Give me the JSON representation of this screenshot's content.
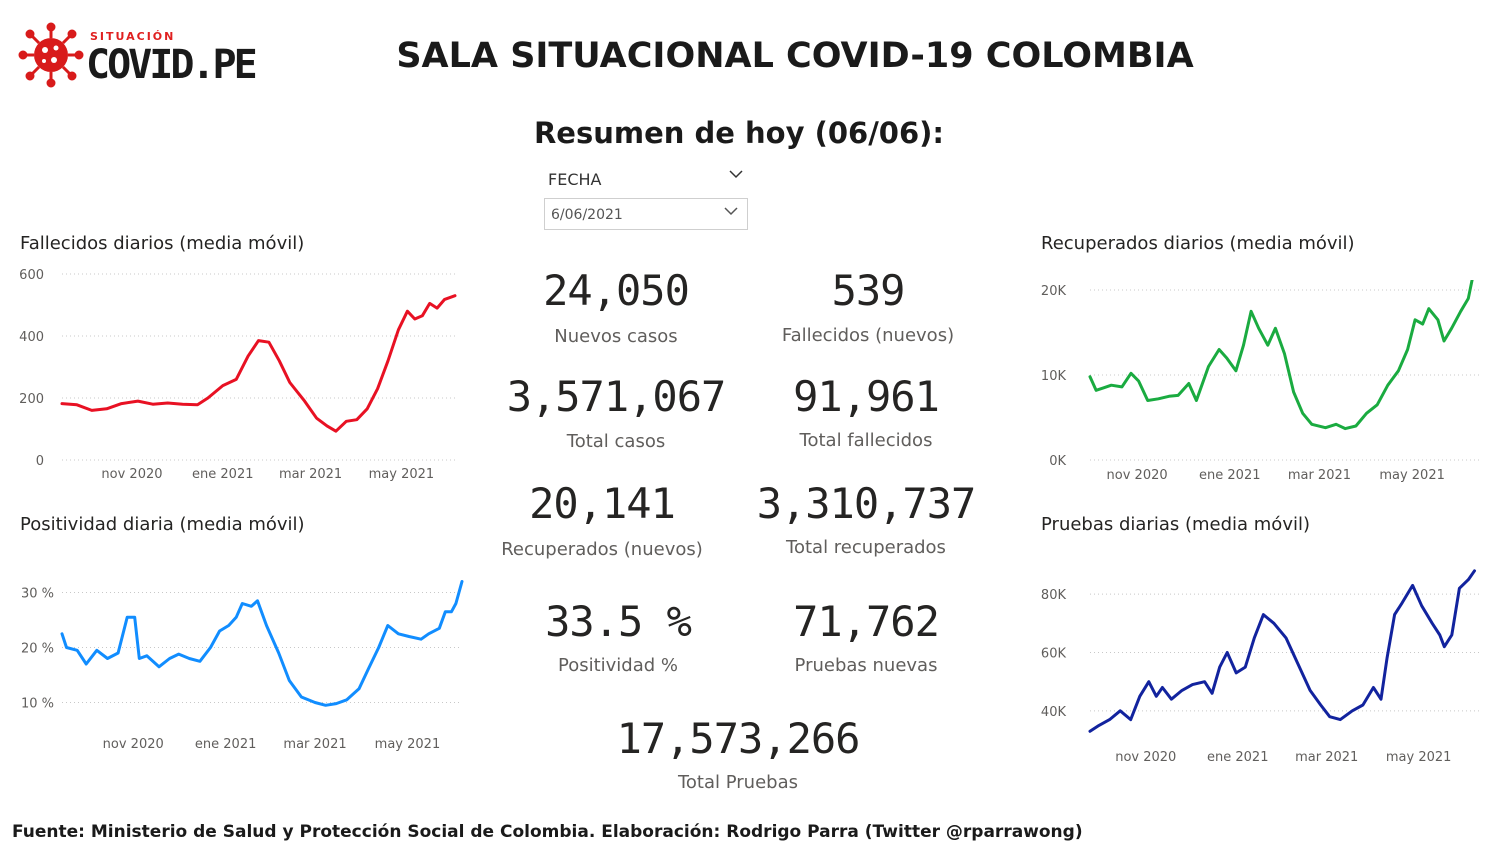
{
  "header": {
    "logo_small": "SITUACIÓN",
    "logo_big": "COVID.PE",
    "title": "SALA SITUACIONAL COVID-19 COLOMBIA",
    "subtitle": "Resumen de hoy (06/06):"
  },
  "slicer": {
    "label": "FECHA",
    "value": "6/06/2021"
  },
  "kpis": {
    "nuevos_casos": {
      "value": "24,050",
      "label": "Nuevos casos"
    },
    "fallecidos_nuevos": {
      "value": "539",
      "label": "Fallecidos (nuevos)"
    },
    "total_casos": {
      "value": "3,571,067",
      "label": "Total casos"
    },
    "total_fallecidos": {
      "value": "91,961",
      "label": "Total fallecidos"
    },
    "recuperados_nuevos": {
      "value": "20,141",
      "label": "Recuperados (nuevos)"
    },
    "total_recuperados": {
      "value": "3,310,737",
      "label": "Total recuperados"
    },
    "positividad": {
      "value": "33.5 %",
      "label": "Positividad %"
    },
    "pruebas_nuevas": {
      "value": "71,762",
      "label": "Pruebas nuevas"
    },
    "total_pruebas": {
      "value": "17,573,266",
      "label": "Total Pruebas"
    }
  },
  "footer": "Fuente: Ministerio de Salud y Protección Social de Colombia. Elaboración: Rodrigo Parra (Twitter @rparrawong)",
  "chart_data": [
    {
      "id": "fallecidos",
      "type": "line",
      "title": "Fallecidos diarios (media móvil)",
      "color": "#e81123",
      "xlim": [
        "2020-09-15",
        "2021-06-06"
      ],
      "x_ticks": [
        "nov 2020",
        "ene 2021",
        "mar 2021",
        "may 2021"
      ],
      "ylim": [
        0,
        600
      ],
      "y_ticks": [
        0,
        200,
        400,
        600
      ],
      "y_tick_labels": [
        "0",
        "200",
        "400",
        "600"
      ],
      "grid": true,
      "points": [
        [
          "2020-09-15",
          182
        ],
        [
          "2020-09-25",
          178
        ],
        [
          "2020-10-05",
          160
        ],
        [
          "2020-10-15",
          165
        ],
        [
          "2020-10-25",
          182
        ],
        [
          "2020-11-05",
          190
        ],
        [
          "2020-11-15",
          180
        ],
        [
          "2020-11-25",
          184
        ],
        [
          "2020-12-05",
          180
        ],
        [
          "2020-12-15",
          178
        ],
        [
          "2020-12-22",
          200
        ],
        [
          "2021-01-01",
          240
        ],
        [
          "2021-01-10",
          260
        ],
        [
          "2021-01-18",
          335
        ],
        [
          "2021-01-25",
          385
        ],
        [
          "2021-02-01",
          380
        ],
        [
          "2021-02-08",
          320
        ],
        [
          "2021-02-15",
          250
        ],
        [
          "2021-02-25",
          190
        ],
        [
          "2021-03-05",
          135
        ],
        [
          "2021-03-12",
          110
        ],
        [
          "2021-03-18",
          93
        ],
        [
          "2021-03-25",
          125
        ],
        [
          "2021-04-01",
          130
        ],
        [
          "2021-04-08",
          165
        ],
        [
          "2021-04-15",
          230
        ],
        [
          "2021-04-22",
          320
        ],
        [
          "2021-04-29",
          420
        ],
        [
          "2021-05-05",
          480
        ],
        [
          "2021-05-10",
          455
        ],
        [
          "2021-05-15",
          465
        ],
        [
          "2021-05-20",
          505
        ],
        [
          "2021-05-25",
          490
        ],
        [
          "2021-05-30",
          518
        ],
        [
          "2021-06-06",
          530
        ]
      ]
    },
    {
      "id": "positividad",
      "type": "line",
      "title": "Positividad diaria (media móvil)",
      "color": "#118dff",
      "xlim": [
        "2020-09-15",
        "2021-06-06"
      ],
      "x_ticks": [
        "nov 2020",
        "ene 2021",
        "mar 2021",
        "may 2021"
      ],
      "ylim": [
        5,
        35
      ],
      "y_ticks": [
        10,
        20,
        30
      ],
      "y_tick_labels": [
        "10 %",
        "20 %",
        "30 %"
      ],
      "grid": true,
      "points": [
        [
          "2020-09-15",
          22.5
        ],
        [
          "2020-09-18",
          20
        ],
        [
          "2020-09-25",
          19.5
        ],
        [
          "2020-10-01",
          17
        ],
        [
          "2020-10-08",
          19.5
        ],
        [
          "2020-10-15",
          18
        ],
        [
          "2020-10-22",
          19
        ],
        [
          "2020-10-28",
          25.5
        ],
        [
          "2020-11-02",
          25.5
        ],
        [
          "2020-11-05",
          18
        ],
        [
          "2020-11-10",
          18.5
        ],
        [
          "2020-11-18",
          16.5
        ],
        [
          "2020-11-25",
          18
        ],
        [
          "2020-12-01",
          18.8
        ],
        [
          "2020-12-08",
          18
        ],
        [
          "2020-12-15",
          17.5
        ],
        [
          "2020-12-22",
          20
        ],
        [
          "2020-12-28",
          23
        ],
        [
          "2021-01-03",
          24
        ],
        [
          "2021-01-08",
          25.5
        ],
        [
          "2021-01-12",
          28
        ],
        [
          "2021-01-18",
          27.5
        ],
        [
          "2021-01-22",
          28.5
        ],
        [
          "2021-01-28",
          24
        ],
        [
          "2021-02-05",
          19
        ],
        [
          "2021-02-12",
          14
        ],
        [
          "2021-02-20",
          11
        ],
        [
          "2021-03-01",
          10
        ],
        [
          "2021-03-08",
          9.5
        ],
        [
          "2021-03-15",
          9.8
        ],
        [
          "2021-03-22",
          10.5
        ],
        [
          "2021-03-30",
          12.5
        ],
        [
          "2021-04-05",
          16
        ],
        [
          "2021-04-12",
          20
        ],
        [
          "2021-04-18",
          24
        ],
        [
          "2021-04-25",
          22.5
        ],
        [
          "2021-05-02",
          22
        ],
        [
          "2021-05-10",
          21.5
        ],
        [
          "2021-05-15",
          22.5
        ],
        [
          "2021-05-22",
          23.5
        ],
        [
          "2021-05-26",
          26.5
        ],
        [
          "2021-05-30",
          26.5
        ],
        [
          "2021-06-02",
          28
        ],
        [
          "2021-06-06",
          32
        ]
      ]
    },
    {
      "id": "recuperados",
      "type": "line",
      "title": "Recuperados diarios (media móvil)",
      "color": "#1aab40",
      "xlim": [
        "2020-10-01",
        "2021-06-16"
      ],
      "x_ticks": [
        "nov 2020",
        "ene 2021",
        "mar 2021",
        "may 2021"
      ],
      "ylim": [
        0,
        20000
      ],
      "y_ticks": [
        0,
        10000,
        20000
      ],
      "y_tick_labels": [
        "0K",
        "10K",
        "20K"
      ],
      "grid": true,
      "points": [
        [
          "2020-10-01",
          9800
        ],
        [
          "2020-10-05",
          8200
        ],
        [
          "2020-10-10",
          8500
        ],
        [
          "2020-10-15",
          8800
        ],
        [
          "2020-10-22",
          8600
        ],
        [
          "2020-10-28",
          10200
        ],
        [
          "2020-11-02",
          9300
        ],
        [
          "2020-11-08",
          7000
        ],
        [
          "2020-11-15",
          7200
        ],
        [
          "2020-11-22",
          7500
        ],
        [
          "2020-11-28",
          7600
        ],
        [
          "2020-12-05",
          9000
        ],
        [
          "2020-12-10",
          7000
        ],
        [
          "2020-12-18",
          11000
        ],
        [
          "2020-12-25",
          13000
        ],
        [
          "2020-12-30",
          12000
        ],
        [
          "2021-01-05",
          10500
        ],
        [
          "2021-01-10",
          13500
        ],
        [
          "2021-01-15",
          17500
        ],
        [
          "2021-01-20",
          15500
        ],
        [
          "2021-01-26",
          13500
        ],
        [
          "2021-01-31",
          15500
        ],
        [
          "2021-02-06",
          12500
        ],
        [
          "2021-02-12",
          8000
        ],
        [
          "2021-02-18",
          5500
        ],
        [
          "2021-02-24",
          4200
        ],
        [
          "2021-03-05",
          3800
        ],
        [
          "2021-03-12",
          4200
        ],
        [
          "2021-03-18",
          3700
        ],
        [
          "2021-03-25",
          4000
        ],
        [
          "2021-04-01",
          5500
        ],
        [
          "2021-04-08",
          6500
        ],
        [
          "2021-04-15",
          8800
        ],
        [
          "2021-04-22",
          10500
        ],
        [
          "2021-04-28",
          13000
        ],
        [
          "2021-05-03",
          16500
        ],
        [
          "2021-05-08",
          16000
        ],
        [
          "2021-05-12",
          17800
        ],
        [
          "2021-05-18",
          16500
        ],
        [
          "2021-05-22",
          14000
        ],
        [
          "2021-05-27",
          15500
        ],
        [
          "2021-06-02",
          17500
        ],
        [
          "2021-06-07",
          19000
        ],
        [
          "2021-06-11",
          22500
        ]
      ]
    },
    {
      "id": "pruebas",
      "type": "line",
      "title": "Pruebas diarias (media móvil)",
      "color": "#12239e",
      "xlim": [
        "2020-09-25",
        "2021-06-12"
      ],
      "x_ticks": [
        "nov 2020",
        "ene 2021",
        "mar 2021",
        "may 2021"
      ],
      "ylim": [
        30000,
        90000
      ],
      "y_ticks": [
        40000,
        60000,
        80000
      ],
      "y_tick_labels": [
        "40K",
        "60K",
        "80K"
      ],
      "grid": true,
      "points": [
        [
          "2020-09-25",
          33000
        ],
        [
          "2020-10-01",
          35000
        ],
        [
          "2020-10-08",
          37000
        ],
        [
          "2020-10-15",
          40000
        ],
        [
          "2020-10-22",
          37000
        ],
        [
          "2020-10-28",
          45000
        ],
        [
          "2020-11-03",
          50000
        ],
        [
          "2020-11-08",
          45000
        ],
        [
          "2020-11-12",
          48000
        ],
        [
          "2020-11-18",
          44000
        ],
        [
          "2020-11-25",
          47000
        ],
        [
          "2020-12-02",
          49000
        ],
        [
          "2020-12-10",
          50000
        ],
        [
          "2020-12-15",
          46000
        ],
        [
          "2020-12-20",
          55000
        ],
        [
          "2020-12-25",
          60000
        ],
        [
          "2020-12-31",
          53000
        ],
        [
          "2021-01-06",
          55000
        ],
        [
          "2021-01-12",
          65000
        ],
        [
          "2021-01-18",
          73000
        ],
        [
          "2021-01-25",
          70000
        ],
        [
          "2021-02-02",
          65000
        ],
        [
          "2021-02-10",
          56000
        ],
        [
          "2021-02-18",
          47000
        ],
        [
          "2021-02-25",
          42000
        ],
        [
          "2021-03-03",
          38000
        ],
        [
          "2021-03-10",
          37000
        ],
        [
          "2021-03-18",
          40000
        ],
        [
          "2021-03-25",
          42000
        ],
        [
          "2021-04-01",
          48000
        ],
        [
          "2021-04-06",
          44000
        ],
        [
          "2021-04-10",
          58000
        ],
        [
          "2021-04-15",
          73000
        ],
        [
          "2021-04-20",
          77000
        ],
        [
          "2021-04-27",
          83000
        ],
        [
          "2021-05-03",
          76000
        ],
        [
          "2021-05-10",
          70000
        ],
        [
          "2021-05-15",
          66000
        ],
        [
          "2021-05-18",
          62000
        ],
        [
          "2021-05-23",
          66000
        ],
        [
          "2021-05-28",
          82000
        ],
        [
          "2021-06-03",
          85000
        ],
        [
          "2021-06-07",
          88000
        ]
      ]
    }
  ]
}
